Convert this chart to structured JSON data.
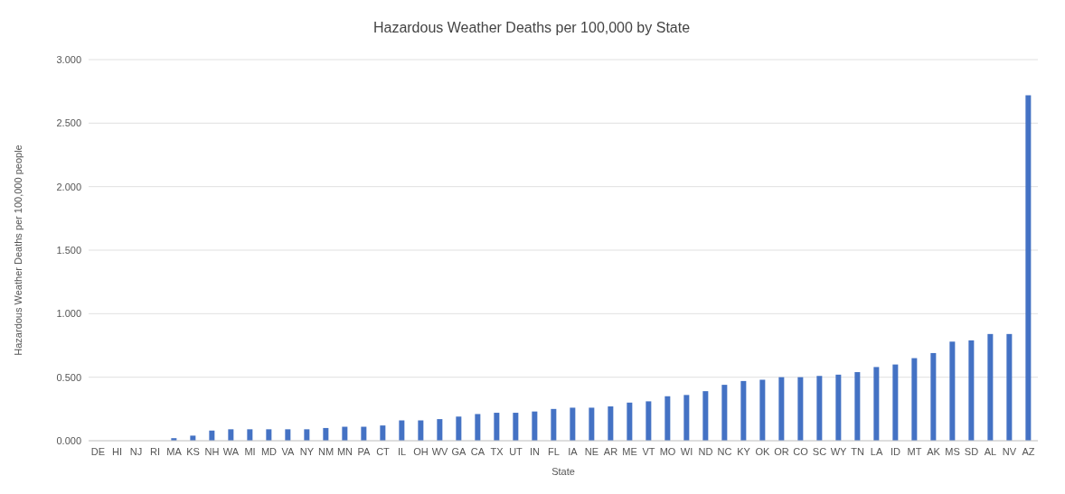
{
  "chart_data": {
    "type": "bar",
    "title": "Hazardous Weather Deaths per 100,000 by State",
    "xlabel": "State",
    "ylabel": "Hazardous Weather Deaths per 100,000 people",
    "categories": [
      "DE",
      "HI",
      "NJ",
      "RI",
      "MA",
      "KS",
      "NH",
      "WA",
      "MI",
      "MD",
      "VA",
      "NY",
      "NM",
      "MN",
      "PA",
      "CT",
      "IL",
      "OH",
      "WV",
      "GA",
      "CA",
      "TX",
      "UT",
      "IN",
      "FL",
      "IA",
      "NE",
      "AR",
      "ME",
      "VT",
      "MO",
      "WI",
      "ND",
      "NC",
      "KY",
      "OK",
      "OR",
      "CO",
      "SC",
      "WY",
      "TN",
      "LA",
      "ID",
      "MT",
      "AK",
      "MS",
      "SD",
      "AL",
      "NV",
      "AZ"
    ],
    "values": [
      0,
      0,
      0,
      0,
      0.02,
      0.04,
      0.08,
      0.09,
      0.09,
      0.09,
      0.09,
      0.09,
      0.1,
      0.11,
      0.11,
      0.12,
      0.16,
      0.16,
      0.17,
      0.19,
      0.21,
      0.22,
      0.22,
      0.23,
      0.25,
      0.26,
      0.26,
      0.27,
      0.3,
      0.31,
      0.35,
      0.36,
      0.39,
      0.44,
      0.47,
      0.48,
      0.5,
      0.5,
      0.51,
      0.52,
      0.54,
      0.58,
      0.6,
      0.65,
      0.69,
      0.78,
      0.79,
      0.84,
      0.84,
      2.72
    ],
    "color": "#4472c4",
    "ylim": [
      0,
      3
    ],
    "yticks": [
      {
        "value": 0,
        "label": "0.000"
      },
      {
        "value": 0.5,
        "label": "0.500"
      },
      {
        "value": 1,
        "label": "1.000"
      },
      {
        "value": 1.5,
        "label": "1.500"
      },
      {
        "value": 2,
        "label": "2.000"
      },
      {
        "value": 2.5,
        "label": "2.500"
      },
      {
        "value": 3,
        "label": "3.000"
      }
    ],
    "grid": "y",
    "legend": false
  }
}
